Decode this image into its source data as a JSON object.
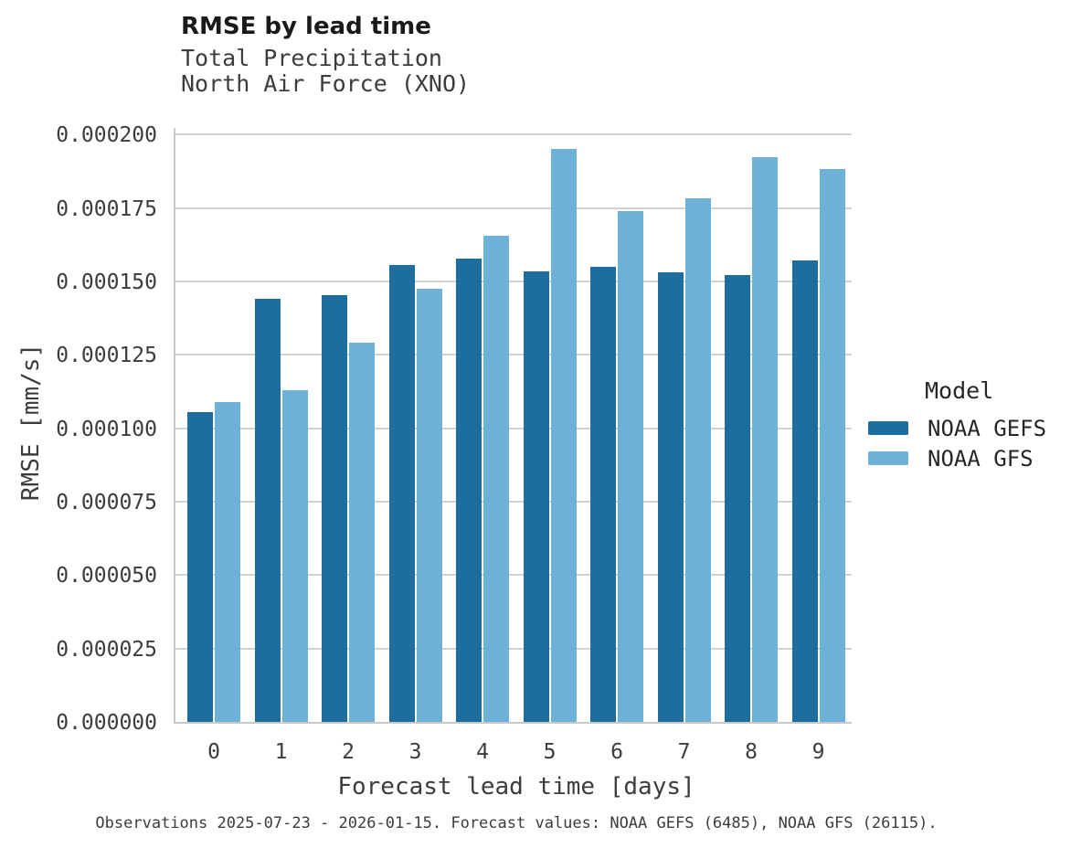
{
  "header": {
    "title": "RMSE by lead time",
    "subtitle_line1": "Total Precipitation",
    "subtitle_line2": "North Air Force (XNO)"
  },
  "legend": {
    "title": "Model",
    "items": [
      {
        "label": "NOAA GEFS",
        "color": "#1d6e9e"
      },
      {
        "label": "NOAA GFS",
        "color": "#6db1d8"
      }
    ]
  },
  "caption": "Observations 2025-07-23 - 2026-01-15. Forecast values: NOAA GEFS (6485), NOAA GFS (26115).",
  "colors": {
    "noaa_gefs": "#1d6e9e",
    "noaa_gfs": "#6db1d8",
    "gridline": "#d2d2d2",
    "spine": "#c9c9c9",
    "text": "#3c3c3c"
  },
  "chart_data": {
    "type": "bar",
    "title": "RMSE by lead time",
    "subtitle": [
      "Total Precipitation",
      "North Air Force (XNO)"
    ],
    "xlabel": "Forecast lead time [days]",
    "ylabel": "RMSE [mm/s]",
    "categories": [
      "0",
      "1",
      "2",
      "3",
      "4",
      "5",
      "6",
      "7",
      "8",
      "9"
    ],
    "series": [
      {
        "name": "NOAA GEFS",
        "color": "#1d6e9e",
        "values": [
          0.0001055,
          0.000144,
          0.0001455,
          0.0001555,
          0.0001577,
          0.0001535,
          0.000155,
          0.0001532,
          0.0001521,
          0.0001572
        ]
      },
      {
        "name": "NOAA GFS",
        "color": "#6db1d8",
        "values": [
          0.000109,
          0.000113,
          0.0001293,
          0.0001475,
          0.0001657,
          0.000195,
          0.000174,
          0.0001782,
          0.0001925,
          0.0001883
        ]
      }
    ],
    "ylim": [
      0.0,
      0.0002023
    ],
    "yticks": [
      0.0,
      2.5e-05,
      5e-05,
      7.5e-05,
      0.0001,
      0.000125,
      0.00015,
      0.000175,
      0.0002
    ],
    "ytick_labels": [
      "0.000000",
      "0.000025",
      "0.000050",
      "0.000075",
      "0.000100",
      "0.000125",
      "0.000150",
      "0.000175",
      "0.000200"
    ],
    "grid": "horizontal",
    "legend_position": "center right"
  }
}
